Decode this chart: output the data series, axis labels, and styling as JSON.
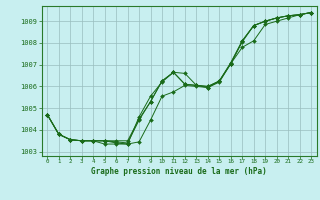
{
  "title": "Graphe pression niveau de la mer (hPa)",
  "bg_color": "#c8eff0",
  "grid_color": "#9abebe",
  "line_color": "#1a6b1a",
  "xlim": [
    -0.5,
    23.5
  ],
  "ylim": [
    1002.8,
    1009.7
  ],
  "yticks": [
    1003,
    1004,
    1005,
    1006,
    1007,
    1008,
    1009
  ],
  "xticks": [
    0,
    1,
    2,
    3,
    4,
    5,
    6,
    7,
    8,
    9,
    10,
    11,
    12,
    13,
    14,
    15,
    16,
    17,
    18,
    19,
    20,
    21,
    22,
    23
  ],
  "series": [
    [
      1004.7,
      1003.8,
      1003.55,
      1003.5,
      1003.5,
      1003.5,
      1003.5,
      1003.5,
      1004.5,
      1005.3,
      1006.25,
      1006.65,
      1006.1,
      1006.05,
      1006.0,
      1006.25,
      1007.05,
      1007.8,
      1008.1,
      1008.85,
      1009.0,
      1009.15,
      1009.3,
      1009.4
    ],
    [
      1004.7,
      1003.8,
      1003.55,
      1003.5,
      1003.5,
      1003.5,
      1003.45,
      1003.4,
      1004.45,
      1005.3,
      1006.25,
      1006.65,
      1006.1,
      1006.05,
      1006.0,
      1006.25,
      1007.05,
      1008.05,
      1008.8,
      1009.0,
      1009.15,
      1009.25,
      1009.3,
      1009.4
    ],
    [
      1004.7,
      1003.8,
      1003.55,
      1003.5,
      1003.5,
      1003.5,
      1003.4,
      1003.35,
      1004.6,
      1005.55,
      1006.2,
      1006.65,
      1006.6,
      1006.05,
      1005.95,
      1006.25,
      1007.1,
      1008.1,
      1008.8,
      1009.0,
      1009.15,
      1009.25,
      1009.3,
      1009.4
    ],
    [
      1004.7,
      1003.8,
      1003.55,
      1003.5,
      1003.5,
      1003.35,
      1003.35,
      1003.35,
      1003.45,
      1004.45,
      1005.55,
      1005.75,
      1006.05,
      1006.0,
      1005.95,
      1006.2,
      1007.05,
      1008.1,
      1008.8,
      1009.0,
      1009.15,
      1009.25,
      1009.3,
      1009.4
    ]
  ]
}
